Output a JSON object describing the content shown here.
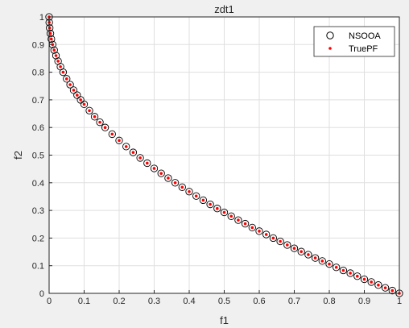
{
  "chart_data": {
    "type": "scatter",
    "title": "zdt1",
    "xlabel": "f1",
    "ylabel": "f2",
    "xlim": [
      0,
      1
    ],
    "ylim": [
      0,
      1
    ],
    "xticks": [
      "0",
      "0.1",
      "0.2",
      "0.3",
      "0.4",
      "0.5",
      "0.6",
      "0.7",
      "0.8",
      "0.9",
      "1"
    ],
    "yticks": [
      "0",
      "0.1",
      "0.2",
      "0.3",
      "0.4",
      "0.5",
      "0.6",
      "0.7",
      "0.8",
      "0.9",
      "1"
    ],
    "grid": true,
    "legend_position": "top-right",
    "series": [
      {
        "name": "NSOOA",
        "marker": "open-circle",
        "color": "#000000",
        "x": [
          0,
          0.0004,
          0.0016,
          0.0036,
          0.0064,
          0.01,
          0.0144,
          0.0196,
          0.0256,
          0.0324,
          0.04,
          0.05,
          0.06,
          0.07,
          0.08,
          0.09,
          0.1,
          0.115,
          0.13,
          0.145,
          0.16,
          0.18,
          0.2,
          0.22,
          0.24,
          0.26,
          0.28,
          0.3,
          0.32,
          0.34,
          0.36,
          0.38,
          0.4,
          0.42,
          0.44,
          0.46,
          0.48,
          0.5,
          0.52,
          0.54,
          0.56,
          0.58,
          0.6,
          0.62,
          0.64,
          0.66,
          0.68,
          0.7,
          0.72,
          0.74,
          0.76,
          0.78,
          0.8,
          0.82,
          0.84,
          0.86,
          0.88,
          0.9,
          0.92,
          0.94,
          0.96,
          0.98,
          1.0
        ],
        "y": [
          1,
          0.98,
          0.96,
          0.94,
          0.92,
          0.9,
          0.88,
          0.86,
          0.84,
          0.82,
          0.8,
          0.776,
          0.755,
          0.735,
          0.717,
          0.7,
          0.684,
          0.661,
          0.639,
          0.619,
          0.6,
          0.576,
          0.553,
          0.531,
          0.51,
          0.49,
          0.471,
          0.452,
          0.434,
          0.417,
          0.4,
          0.384,
          0.368,
          0.352,
          0.337,
          0.322,
          0.307,
          0.293,
          0.279,
          0.265,
          0.252,
          0.238,
          0.225,
          0.213,
          0.2,
          0.188,
          0.175,
          0.163,
          0.151,
          0.14,
          0.128,
          0.117,
          0.106,
          0.094,
          0.083,
          0.073,
          0.062,
          0.051,
          0.041,
          0.03,
          0.02,
          0.01,
          0
        ]
      },
      {
        "name": "TruePF",
        "marker": "dot",
        "color": "#ff0000",
        "x": [
          0,
          0.0004,
          0.0016,
          0.0036,
          0.0064,
          0.01,
          0.0144,
          0.0196,
          0.0256,
          0.0324,
          0.04,
          0.05,
          0.06,
          0.07,
          0.08,
          0.09,
          0.1,
          0.115,
          0.13,
          0.145,
          0.16,
          0.18,
          0.2,
          0.22,
          0.24,
          0.26,
          0.28,
          0.3,
          0.32,
          0.34,
          0.36,
          0.38,
          0.4,
          0.42,
          0.44,
          0.46,
          0.48,
          0.5,
          0.52,
          0.54,
          0.56,
          0.58,
          0.6,
          0.62,
          0.64,
          0.66,
          0.68,
          0.7,
          0.72,
          0.74,
          0.76,
          0.78,
          0.8,
          0.82,
          0.84,
          0.86,
          0.88,
          0.9,
          0.92,
          0.94,
          0.96,
          0.98,
          1.0
        ],
        "y": [
          1,
          0.98,
          0.96,
          0.94,
          0.92,
          0.9,
          0.88,
          0.86,
          0.84,
          0.82,
          0.8,
          0.776,
          0.755,
          0.735,
          0.717,
          0.7,
          0.684,
          0.661,
          0.639,
          0.619,
          0.6,
          0.576,
          0.553,
          0.531,
          0.51,
          0.49,
          0.471,
          0.452,
          0.434,
          0.417,
          0.4,
          0.384,
          0.368,
          0.352,
          0.337,
          0.322,
          0.307,
          0.293,
          0.279,
          0.265,
          0.252,
          0.238,
          0.225,
          0.213,
          0.2,
          0.188,
          0.175,
          0.163,
          0.151,
          0.14,
          0.128,
          0.117,
          0.106,
          0.094,
          0.083,
          0.073,
          0.062,
          0.051,
          0.041,
          0.03,
          0.02,
          0.01,
          0
        ]
      }
    ]
  }
}
